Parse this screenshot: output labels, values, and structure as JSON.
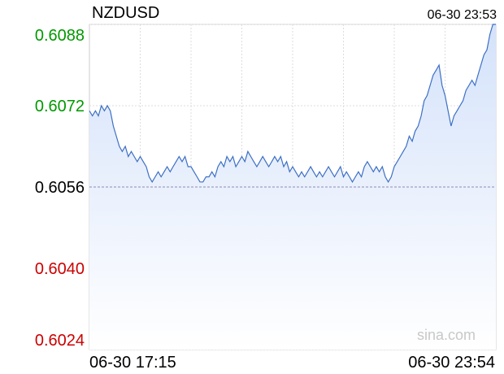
{
  "chart_data": {
    "type": "area",
    "title": "NZDUSD",
    "timestamp": "06-30 23:53",
    "xlabel": "",
    "ylabel": "",
    "ylim": [
      0.6024,
      0.6088
    ],
    "y_ticks": [
      {
        "value": 0.6088,
        "label": "0.6088",
        "color": "#009900"
      },
      {
        "value": 0.6072,
        "label": "0.6072",
        "color": "#009900"
      },
      {
        "value": 0.6056,
        "label": "0.6056",
        "color": "#000000"
      },
      {
        "value": 0.604,
        "label": "0.6040",
        "color": "#cc0000"
      },
      {
        "value": 0.6024,
        "label": "0.6024",
        "color": "#cc0000"
      }
    ],
    "x_ticks": [
      "06-30 17:15",
      "06-30 23:54"
    ],
    "reference_line": 0.6056,
    "watermark": "sina.com",
    "grid": true,
    "line_color": "#3c6fc4",
    "fill_color": "#d4e2fa",
    "series": [
      {
        "values": [
          0.6071,
          0.607,
          0.6071,
          0.607,
          0.6072,
          0.6071,
          0.6072,
          0.6071,
          0.6068,
          0.6066,
          0.6064,
          0.6063,
          0.6064,
          0.6062,
          0.6063,
          0.6062,
          0.6061,
          0.6062,
          0.6061,
          0.606,
          0.6058,
          0.6057,
          0.6058,
          0.6059,
          0.6058,
          0.6059,
          0.606,
          0.6059,
          0.606,
          0.6061,
          0.6062,
          0.6061,
          0.6062,
          0.606,
          0.606,
          0.6059,
          0.6058,
          0.6057,
          0.6057,
          0.6058,
          0.6058,
          0.6059,
          0.6058,
          0.606,
          0.6061,
          0.606,
          0.6062,
          0.6061,
          0.6062,
          0.606,
          0.6061,
          0.6062,
          0.6061,
          0.6063,
          0.6062,
          0.6061,
          0.606,
          0.6061,
          0.6062,
          0.6061,
          0.606,
          0.6061,
          0.6062,
          0.6061,
          0.6062,
          0.606,
          0.6061,
          0.6059,
          0.606,
          0.6059,
          0.6058,
          0.6059,
          0.6058,
          0.6059,
          0.606,
          0.6059,
          0.6058,
          0.6059,
          0.6058,
          0.6059,
          0.606,
          0.6059,
          0.6058,
          0.6059,
          0.606,
          0.6058,
          0.6059,
          0.6058,
          0.6057,
          0.6058,
          0.6059,
          0.6058,
          0.606,
          0.6061,
          0.606,
          0.6059,
          0.606,
          0.6059,
          0.606,
          0.6058,
          0.6057,
          0.6058,
          0.606,
          0.6061,
          0.6062,
          0.6063,
          0.6064,
          0.6066,
          0.6065,
          0.6067,
          0.6068,
          0.607,
          0.6073,
          0.6074,
          0.6076,
          0.6078,
          0.6079,
          0.608,
          0.6076,
          0.6074,
          0.6071,
          0.6068,
          0.607,
          0.6071,
          0.6072,
          0.6073,
          0.6075,
          0.6076,
          0.6077,
          0.6076,
          0.6078,
          0.608,
          0.6082,
          0.6083,
          0.6086,
          0.6088,
          0.6089
        ]
      }
    ]
  }
}
